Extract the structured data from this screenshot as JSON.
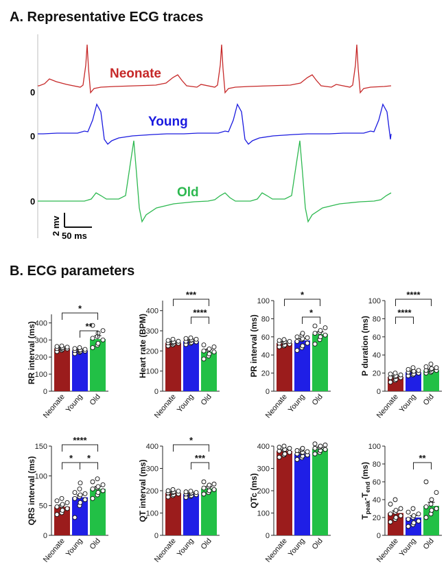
{
  "sections": {
    "a_title": "A. Representative ECG traces",
    "b_title": "B. ECG parameters"
  },
  "ecg": {
    "traces": [
      {
        "name": "Neonate",
        "color": "#c62828",
        "baseline_label": "0"
      },
      {
        "name": "Young",
        "color": "#1a1adf",
        "baseline_label": "0"
      },
      {
        "name": "Old",
        "color": "#2cb84f",
        "baseline_label": "0"
      }
    ],
    "scale_bar": {
      "voltage": "2 mv",
      "time": "50 ms"
    }
  },
  "colors": {
    "neonate": "#9b1c1c",
    "young": "#1f1fe6",
    "old": "#22c046"
  },
  "chart_data": [
    {
      "type": "bar",
      "ylabel": "RR interval (ms)",
      "ylim": [
        0,
        450
      ],
      "yticks": [
        0,
        100,
        200,
        300,
        400
      ],
      "categories": [
        "Neonate",
        "Young",
        "Old"
      ],
      "values": [
        250,
        238,
        305
      ],
      "errors": [
        8,
        8,
        20
      ],
      "points": [
        [
          232,
          240,
          245,
          248,
          250,
          252,
          255,
          258,
          262,
          265
        ],
        [
          220,
          228,
          232,
          235,
          238,
          240,
          242,
          245,
          250,
          255
        ],
        [
          255,
          270,
          280,
          300,
          310,
          320,
          340,
          355,
          385
        ]
      ],
      "significance": [
        {
          "from": 0,
          "to": 2,
          "label": "*"
        },
        {
          "from": 1,
          "to": 2,
          "label": "**"
        }
      ]
    },
    {
      "type": "bar",
      "ylabel": "Heart rate (BPM)",
      "ylim": [
        0,
        450
      ],
      "yticks": [
        0,
        100,
        200,
        300,
        400
      ],
      "categories": [
        "Neonate",
        "Young",
        "Old"
      ],
      "values": [
        240,
        248,
        196
      ],
      "errors": [
        7,
        7,
        12
      ],
      "points": [
        [
          225,
          230,
          235,
          238,
          240,
          242,
          245,
          248,
          252,
          258
        ],
        [
          232,
          238,
          242,
          245,
          248,
          252,
          255,
          258,
          262,
          265
        ],
        [
          160,
          175,
          185,
          195,
          200,
          205,
          210,
          220,
          230
        ]
      ],
      "significance": [
        {
          "from": 0,
          "to": 2,
          "label": "***"
        },
        {
          "from": 1,
          "to": 2,
          "label": "****"
        }
      ]
    },
    {
      "type": "bar",
      "ylabel": "PR interval (ms)",
      "ylim": [
        0,
        100
      ],
      "yticks": [
        0,
        20,
        40,
        60,
        80,
        100
      ],
      "categories": [
        "Neonate",
        "Young",
        "Old"
      ],
      "values": [
        53,
        56,
        63
      ],
      "errors": [
        1.5,
        2,
        2.5
      ],
      "points": [
        [
          49,
          50,
          51,
          52,
          53,
          54,
          55,
          55,
          56,
          57
        ],
        [
          45,
          48,
          50,
          53,
          55,
          57,
          58,
          59,
          60,
          62,
          64
        ],
        [
          52,
          57,
          60,
          62,
          64,
          65,
          67,
          70,
          72
        ]
      ],
      "significance": [
        {
          "from": 0,
          "to": 2,
          "label": "*"
        },
        {
          "from": 1,
          "to": 2,
          "label": "*"
        }
      ]
    },
    {
      "type": "bar",
      "ylabel": "P duration (ms)",
      "ylim": [
        0,
        100
      ],
      "yticks": [
        0,
        20,
        40,
        60,
        80,
        100
      ],
      "categories": [
        "Neonate",
        "Young",
        "Old"
      ],
      "values": [
        16,
        21,
        23
      ],
      "errors": [
        1,
        1,
        1
      ],
      "points": [
        [
          10,
          12,
          13,
          15,
          15,
          16,
          17,
          18,
          19,
          20
        ],
        [
          17,
          18,
          19,
          20,
          21,
          22,
          22,
          23,
          24,
          26
        ],
        [
          20,
          21,
          22,
          23,
          23,
          24,
          25,
          26,
          27,
          30
        ]
      ],
      "significance": [
        {
          "from": 0,
          "to": 1,
          "label": "****"
        },
        {
          "from": 0,
          "to": 2,
          "label": "****"
        }
      ]
    },
    {
      "type": "bar",
      "ylabel": "QRS interval (ms)",
      "ylim": [
        0,
        150
      ],
      "yticks": [
        0,
        50,
        100,
        150
      ],
      "categories": [
        "Neonate",
        "Young",
        "Old"
      ],
      "values": [
        48,
        64,
        78
      ],
      "errors": [
        3,
        4,
        4
      ],
      "points": [
        [
          35,
          38,
          42,
          45,
          48,
          50,
          52,
          55,
          58,
          62
        ],
        [
          30,
          50,
          55,
          60,
          62,
          65,
          68,
          70,
          72,
          78,
          88
        ],
        [
          62,
          68,
          72,
          75,
          78,
          80,
          82,
          85,
          90,
          95
        ]
      ],
      "significance": [
        {
          "from": 0,
          "to": 2,
          "label": "****"
        },
        {
          "from": 0,
          "to": 1,
          "label": "*"
        },
        {
          "from": 1,
          "to": 2,
          "label": "*"
        }
      ]
    },
    {
      "type": "bar",
      "ylabel": "QT interval (ms)",
      "ylim": [
        0,
        400
      ],
      "yticks": [
        0,
        100,
        200,
        300,
        400
      ],
      "categories": [
        "Neonate",
        "Young",
        "Old"
      ],
      "values": [
        190,
        185,
        210
      ],
      "errors": [
        5,
        4,
        8
      ],
      "points": [
        [
          172,
          178,
          182,
          186,
          190,
          192,
          195,
          198,
          200,
          205
        ],
        [
          170,
          175,
          178,
          182,
          185,
          188,
          190,
          192,
          195,
          198
        ],
        [
          185,
          192,
          200,
          205,
          212,
          218,
          225,
          230,
          240
        ]
      ],
      "significance": [
        {
          "from": 0,
          "to": 2,
          "label": "*"
        },
        {
          "from": 1,
          "to": 2,
          "label": "***"
        }
      ]
    },
    {
      "type": "bar",
      "ylabel": "QTc (ms)",
      "ylim": [
        0,
        400
      ],
      "yticks": [
        0,
        100,
        200,
        300,
        400
      ],
      "categories": [
        "Neonate",
        "Young",
        "Old"
      ],
      "values": [
        378,
        365,
        388
      ],
      "errors": [
        5,
        5,
        6
      ],
      "points": [
        [
          350,
          360,
          365,
          372,
          378,
          382,
          385,
          390,
          395,
          400
        ],
        [
          340,
          348,
          355,
          360,
          365,
          370,
          372,
          375,
          380,
          385,
          390
        ],
        [
          365,
          372,
          380,
          385,
          390,
          395,
          400,
          405,
          410
        ]
      ],
      "significance": []
    },
    {
      "type": "bar",
      "ylabel": "T",
      "ylabel_sub1": "peak",
      "ylabel_mid": "-T",
      "ylabel_sub2": "end",
      "ylabel_tail": " (ms)",
      "ylim": [
        0,
        100
      ],
      "yticks": [
        0,
        20,
        40,
        60,
        80,
        100
      ],
      "categories": [
        "Neonate",
        "Young",
        "Old"
      ],
      "values": [
        25,
        20,
        33
      ],
      "errors": [
        2.5,
        2,
        4
      ],
      "points": [
        [
          15,
          18,
          20,
          22,
          24,
          26,
          28,
          30,
          35,
          40
        ],
        [
          10,
          12,
          14,
          16,
          18,
          20,
          22,
          24,
          26,
          30
        ],
        [
          20,
          24,
          28,
          30,
          32,
          35,
          40,
          48,
          60
        ]
      ],
      "significance": [
        {
          "from": 1,
          "to": 2,
          "label": "**"
        }
      ]
    }
  ]
}
